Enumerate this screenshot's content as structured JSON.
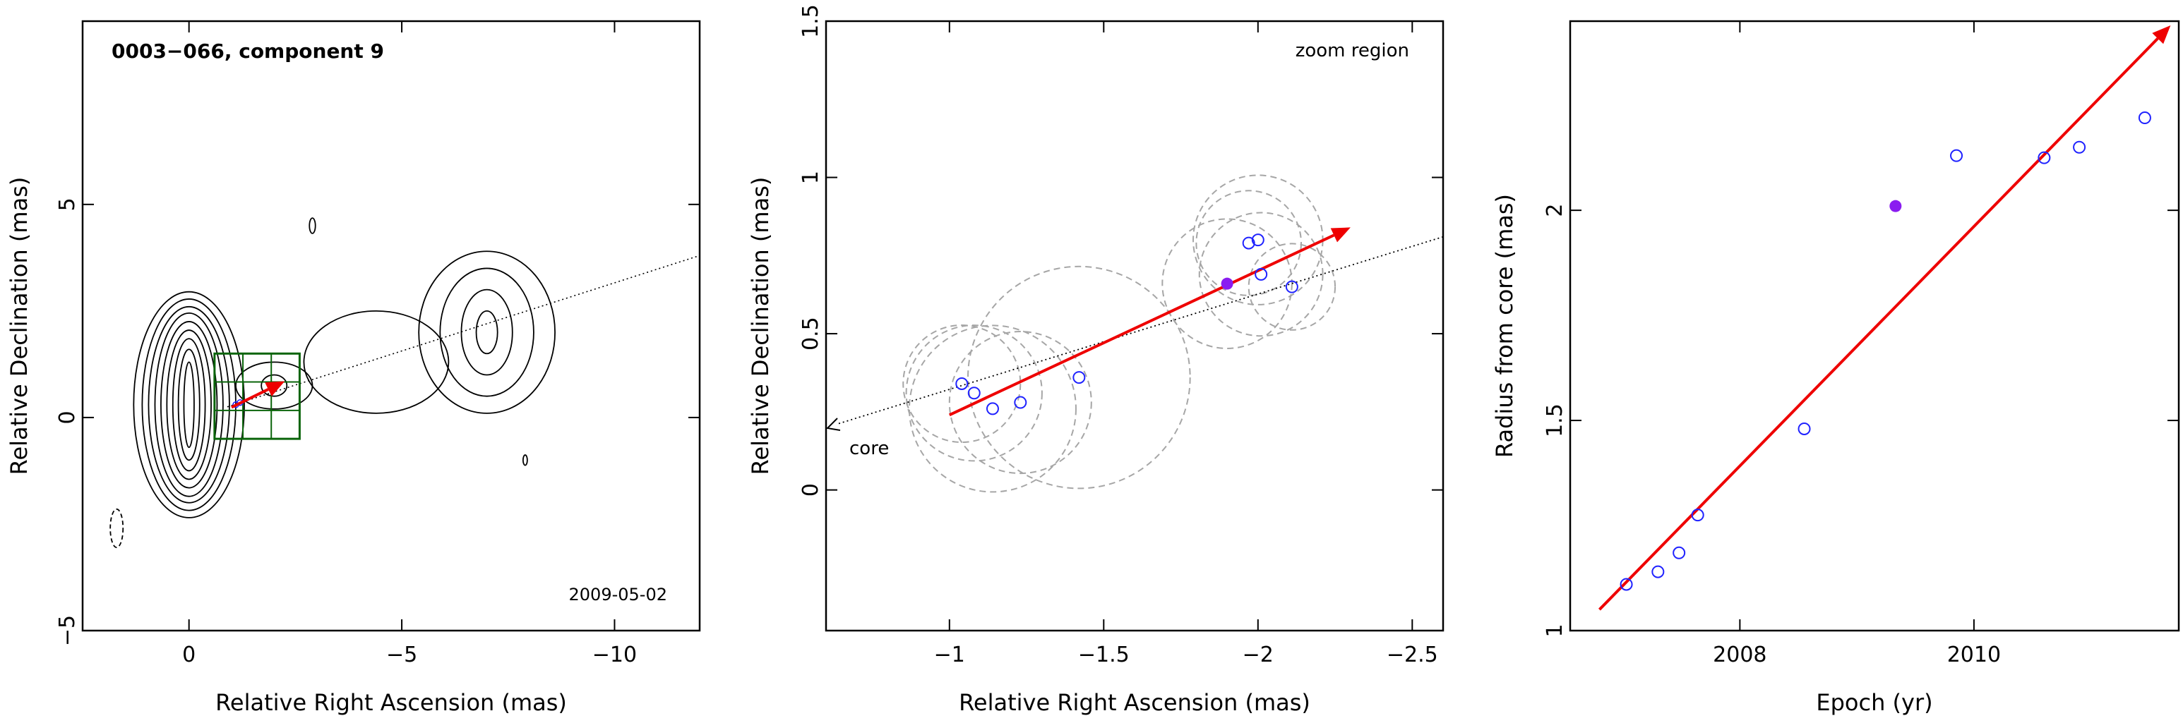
{
  "colors": {
    "frame": "#000000",
    "contour": "#000000",
    "box": "#0a640a",
    "arrow": "#ee0000",
    "epoch_point": "#1f22ff",
    "highlight_point": "#8a1cf0",
    "uncertainty_circle": "#a6a6a6",
    "ejection_line": "#000000"
  },
  "chart_data": [
    {
      "type": "contour-map",
      "title": "0003−066, component 9",
      "annotation": "2009-05-02",
      "xlabel": "Relative Right Ascension (mas)",
      "ylabel": "Relative Declination (mas)",
      "xlim": [
        2.5,
        -12
      ],
      "ylim": [
        -5,
        9.3
      ],
      "x_ticks": [
        0,
        -5,
        -10
      ],
      "x_tick_labels": [
        "0",
        "−5",
        "−10"
      ],
      "y_ticks": [
        -5,
        0,
        5
      ],
      "y_tick_labels": [
        "−5",
        "0",
        "5"
      ],
      "zoom_box": {
        "x": [
          -0.6,
          -2.6
        ],
        "y": [
          -0.5,
          1.5
        ]
      },
      "contours": {
        "core": {
          "x": 0,
          "y": 0.3,
          "levels": [
            [
              0.12,
              1.0
            ],
            [
              0.25,
              1.3
            ],
            [
              0.38,
              1.55
            ],
            [
              0.52,
              1.75
            ],
            [
              0.66,
              1.95
            ],
            [
              0.8,
              2.15
            ],
            [
              0.95,
              2.3
            ],
            [
              1.1,
              2.48
            ],
            [
              1.3,
              2.65
            ]
          ]
        },
        "knot": {
          "x": -2.0,
          "y": 0.75,
          "levels": [
            [
              0.3,
              0.25
            ],
            [
              0.9,
              0.55
            ]
          ]
        },
        "lobe": {
          "x": -7.0,
          "y": 2.0,
          "levels": [
            [
              0.25,
              0.5
            ],
            [
              0.6,
              1.0
            ],
            [
              1.1,
              1.5
            ],
            [
              1.6,
              1.9
            ]
          ]
        },
        "bridge": {
          "x": -4.4,
          "y": 1.3,
          "levels": [
            [
              1.7,
              1.2
            ]
          ]
        },
        "negative": {
          "x": 1.7,
          "y": -2.6,
          "levels": [
            [
              0.15,
              0.45
            ]
          ]
        },
        "islands": [
          {
            "x": -2.9,
            "y": 4.5,
            "rx": 0.07,
            "ry": 0.18
          },
          {
            "x": -7.9,
            "y": -1.0,
            "rx": 0.05,
            "ry": 0.12
          }
        ]
      },
      "ejection_line": {
        "from": [
          -0.9,
          0.25
        ],
        "to": [
          -12,
          3.8
        ]
      },
      "arrow": {
        "from": [
          -1.0,
          0.24
        ],
        "to": [
          -2.25,
          0.85
        ]
      },
      "points": [
        {
          "x": -1.1,
          "y": 0.3
        },
        {
          "x": -1.2,
          "y": 0.35
        }
      ]
    },
    {
      "type": "scatter",
      "annotation": "zoom region",
      "core_label": "core",
      "xlabel": "Relative Right Ascension (mas)",
      "ylabel": "Relative Declination (mas)",
      "xlim": [
        -0.6,
        -2.6
      ],
      "ylim": [
        -0.45,
        1.5
      ],
      "x_ticks": [
        -1,
        -1.5,
        -2,
        -2.5
      ],
      "x_tick_labels": [
        "−1",
        "−1.5",
        "−2",
        "−2.5"
      ],
      "y_ticks": [
        0,
        0.5,
        1,
        1.5
      ],
      "y_tick_labels": [
        "0",
        "0.5",
        "1",
        "1.5"
      ],
      "ejection_line": {
        "from": [
          -0.6,
          0.2
        ],
        "to": [
          -2.6,
          0.81
        ]
      },
      "arrow": {
        "from": [
          -1.0,
          0.24
        ],
        "to": [
          -2.3,
          0.84
        ]
      },
      "points": [
        {
          "x": -1.04,
          "y": 0.34,
          "r": 0.19
        },
        {
          "x": -1.08,
          "y": 0.31,
          "r": 0.22
        },
        {
          "x": -1.14,
          "y": 0.26,
          "r": 0.27
        },
        {
          "x": -1.23,
          "y": 0.28,
          "r": 0.23
        },
        {
          "x": -1.42,
          "y": 0.36,
          "r": 0.36
        },
        {
          "x": -1.97,
          "y": 0.79,
          "r": 0.17
        },
        {
          "x": -2.0,
          "y": 0.8,
          "r": 0.21
        },
        {
          "x": -2.01,
          "y": 0.69,
          "r": 0.2
        },
        {
          "x": -2.11,
          "y": 0.65,
          "r": 0.14
        }
      ],
      "highlight": {
        "x": -1.9,
        "y": 0.66,
        "r": 0.21
      }
    },
    {
      "type": "scatter",
      "xlabel": "Epoch (yr)",
      "ylabel": "Radius from core (mas)",
      "xlim": [
        2006.55,
        2011.75
      ],
      "ylim": [
        1.0,
        2.45
      ],
      "x_ticks": [
        2008,
        2010
      ],
      "x_tick_labels": [
        "2008",
        "2010"
      ],
      "y_ticks": [
        1,
        1.5,
        2
      ],
      "y_tick_labels": [
        "1",
        "1.5",
        "2"
      ],
      "arrow": {
        "from": [
          2006.8,
          1.05
        ],
        "to": [
          2011.68,
          2.44
        ]
      },
      "points": [
        {
          "x": 2007.03,
          "y": 1.11
        },
        {
          "x": 2007.3,
          "y": 1.14
        },
        {
          "x": 2007.48,
          "y": 1.185
        },
        {
          "x": 2007.64,
          "y": 1.275
        },
        {
          "x": 2008.55,
          "y": 1.48
        },
        {
          "x": 2009.85,
          "y": 2.13
        },
        {
          "x": 2010.6,
          "y": 2.125
        },
        {
          "x": 2010.9,
          "y": 2.15
        },
        {
          "x": 2011.46,
          "y": 2.22
        }
      ],
      "highlight": {
        "x": 2009.33,
        "y": 2.01
      }
    }
  ]
}
